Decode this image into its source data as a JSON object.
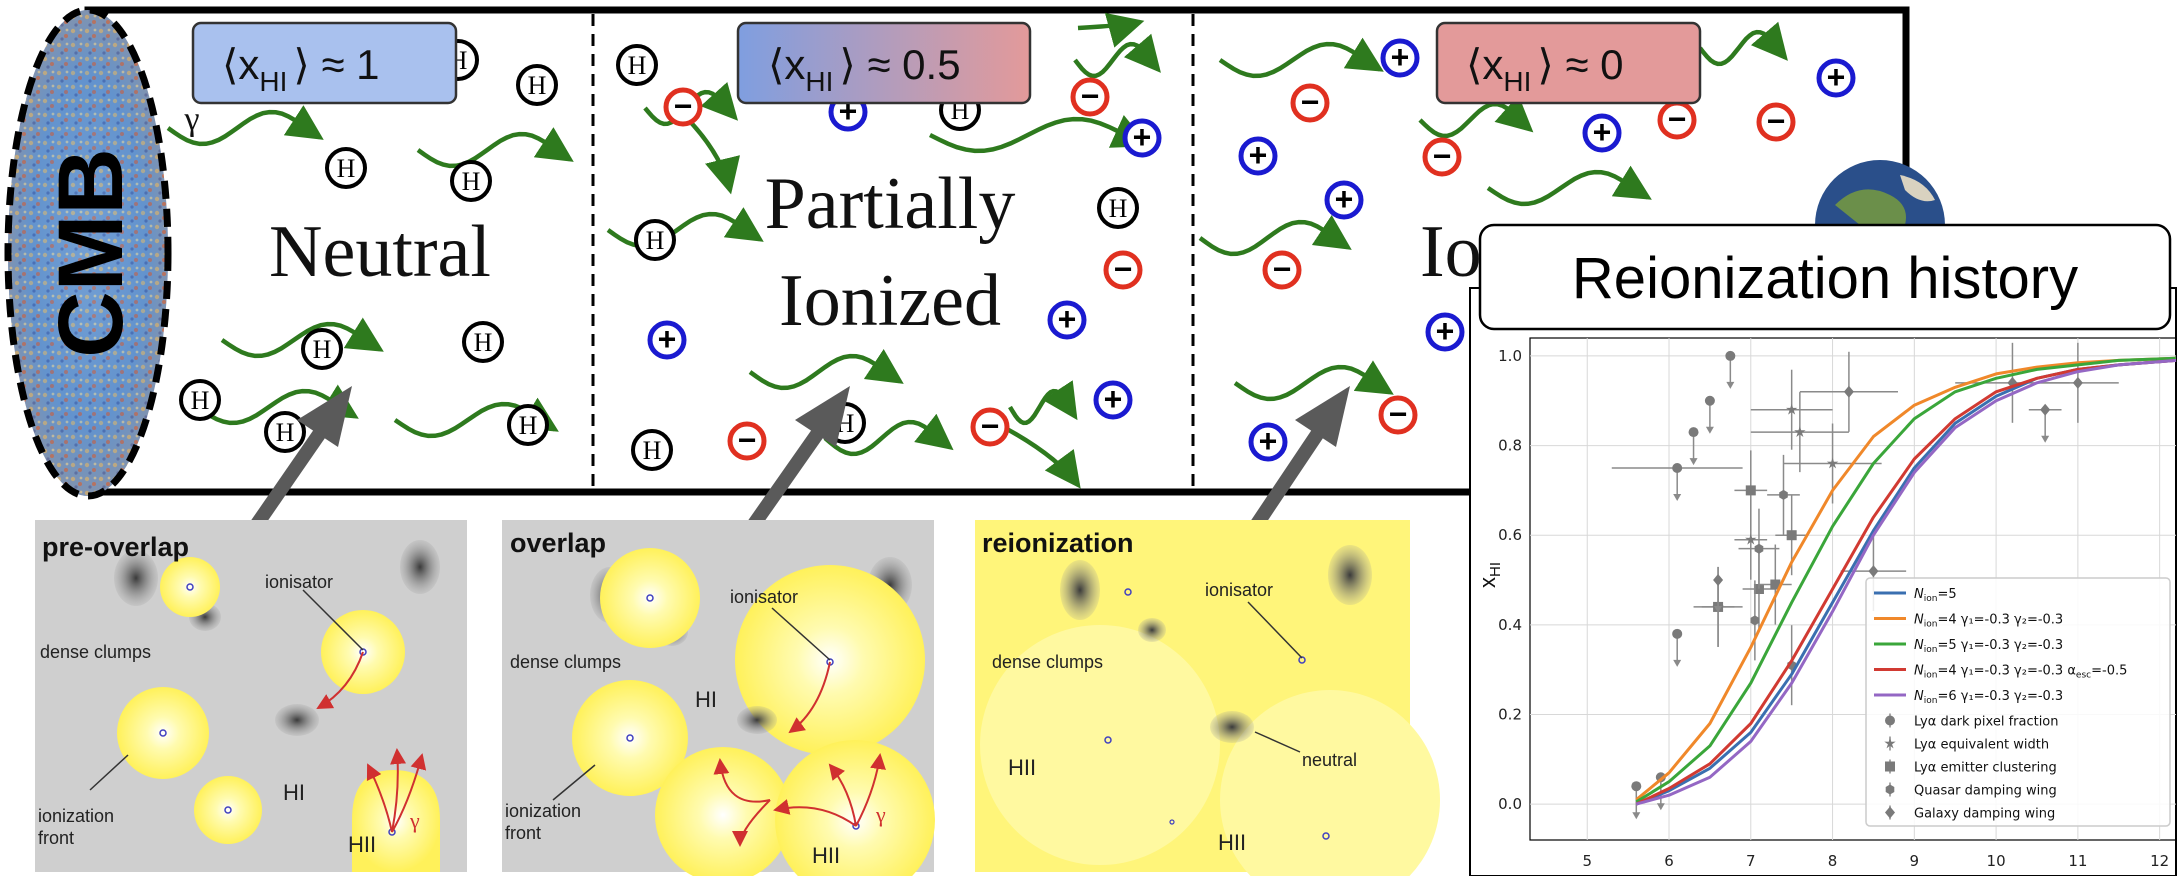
{
  "colors": {
    "neutral_atom": "#000000",
    "electron_red": "#e03020",
    "proton_blue": "#1a1ad0",
    "photon_green": "#2e7a1e",
    "badge_neutral": "#a9c1ee",
    "badge_partial_left": "#7f9ee0",
    "badge_partial_right": "#e39a9a",
    "badge_ionized": "#e39a9a",
    "bubble_yellow": "#fff66a",
    "background_gray": "#cfcfcf",
    "front_red": "#d03030",
    "arrow_gray": "#5a5a5a"
  },
  "top_panel": {
    "cmb_label": "CMB",
    "panels": [
      {
        "badge": "⟨x",
        "badge_sub": "HI",
        "badge_tail": "⟩ ≈ 1",
        "title_line1": "Neutral",
        "title_line2": "",
        "gamma": "γ"
      },
      {
        "badge": "⟨x",
        "badge_sub": "HI",
        "badge_tail": "⟩ ≈ 0.5",
        "title_line1": "Partially",
        "title_line2": "Ionized"
      },
      {
        "badge": "⟨x",
        "badge_sub": "HI",
        "badge_tail": "⟩ ≈ 0",
        "title_line1": "Io",
        "title_line2": ""
      }
    ],
    "atom_symbol": "H",
    "electron_symbol": "−",
    "proton_symbol": "+"
  },
  "bottom_panels": [
    {
      "title": "pre-overlap",
      "labels": {
        "ionisator": "ionisator",
        "dense": "dense clumps",
        "front1": "ionization",
        "front2": "front",
        "hi": "HI",
        "hii": "HII",
        "gamma": "γ"
      }
    },
    {
      "title": "overlap",
      "labels": {
        "ionisator": "ionisator",
        "dense": "dense clumps",
        "front1": "ionization",
        "front2": "front",
        "hi": "HI",
        "hii": "HII",
        "gamma": "γ"
      }
    },
    {
      "title": "reionization",
      "labels": {
        "ionisator": "ionisator",
        "dense": "dense clumps",
        "neutral": "neutral",
        "hii1": "HII",
        "hii2": "HII"
      }
    }
  ],
  "history_title": "Reionization history",
  "chart_data": {
    "type": "line",
    "title": "",
    "xlabel": "",
    "ylabel": "x",
    "ylabel_sub": "HI",
    "xlim": [
      4.3,
      12.2
    ],
    "ylim": [
      -0.08,
      1.04
    ],
    "xticks": [
      "5",
      "6",
      "7",
      "8",
      "9",
      "10",
      "11",
      "12"
    ],
    "yticks": [
      "0.0",
      "0.2",
      "0.4",
      "0.6",
      "0.8",
      "1.0"
    ],
    "grid": true,
    "legend_position": "lower-right",
    "series": [
      {
        "name": "N_ion=5",
        "legend_main": "N",
        "legend_sub": "ion",
        "legend_rest": "=5",
        "color": "#3a6fb0",
        "x": [
          5.6,
          6.0,
          6.5,
          7.0,
          7.5,
          8.0,
          8.5,
          9.0,
          9.5,
          10.0,
          10.5,
          11.0,
          11.5,
          12.2
        ],
        "y": [
          0.0,
          0.03,
          0.08,
          0.16,
          0.29,
          0.45,
          0.61,
          0.75,
          0.85,
          0.91,
          0.95,
          0.97,
          0.98,
          0.99
        ]
      },
      {
        "name": "N_ion=4 γ1=-0.3 γ2=-0.3",
        "legend_main": "N",
        "legend_sub": "ion",
        "legend_rest": "=4 γ₁=-0.3 γ₂=-0.3",
        "color": "#f0882a",
        "x": [
          5.6,
          6.0,
          6.5,
          7.0,
          7.5,
          8.0,
          8.5,
          9.0,
          9.5,
          10.0,
          10.5,
          11.0,
          11.5,
          12.2
        ],
        "y": [
          0.01,
          0.07,
          0.18,
          0.35,
          0.54,
          0.7,
          0.82,
          0.89,
          0.93,
          0.96,
          0.975,
          0.985,
          0.99,
          0.995
        ]
      },
      {
        "name": "N_ion=5 γ1=-0.3 γ2=-0.3",
        "legend_main": "N",
        "legend_sub": "ion",
        "legend_rest": "=5 γ₁=-0.3 γ₂=-0.3",
        "color": "#3aa63a",
        "x": [
          5.6,
          6.0,
          6.5,
          7.0,
          7.5,
          8.0,
          8.5,
          9.0,
          9.5,
          10.0,
          10.5,
          11.0,
          11.5,
          12.2
        ],
        "y": [
          0.005,
          0.05,
          0.13,
          0.27,
          0.45,
          0.62,
          0.76,
          0.86,
          0.92,
          0.95,
          0.97,
          0.98,
          0.99,
          0.995
        ]
      },
      {
        "name": "N_ion=4 γ1=-0.3 γ2=-0.3 α_esc=-0.5",
        "legend_main": "N",
        "legend_sub": "ion",
        "legend_rest": "=4 γ₁=-0.3 γ₂=-0.3 α",
        "legend_sub2": "esc",
        "legend_rest2": "=-0.5",
        "color": "#d13a32",
        "x": [
          5.6,
          6.0,
          6.5,
          7.0,
          7.5,
          8.0,
          8.5,
          9.0,
          9.5,
          10.0,
          10.5,
          11.0,
          11.5,
          12.2
        ],
        "y": [
          0.0,
          0.035,
          0.09,
          0.18,
          0.32,
          0.48,
          0.64,
          0.77,
          0.86,
          0.92,
          0.95,
          0.97,
          0.98,
          0.99
        ]
      },
      {
        "name": "N_ion=6 γ1=-0.3 γ2=-0.3",
        "legend_main": "N",
        "legend_sub": "ion",
        "legend_rest": "=6 γ₁=-0.3 γ₂=-0.3",
        "color": "#9467c4",
        "x": [
          5.6,
          6.0,
          6.5,
          7.0,
          7.5,
          8.0,
          8.5,
          9.0,
          9.5,
          10.0,
          10.5,
          11.0,
          11.5,
          12.2
        ],
        "y": [
          0.0,
          0.02,
          0.06,
          0.14,
          0.27,
          0.43,
          0.6,
          0.74,
          0.84,
          0.9,
          0.94,
          0.965,
          0.98,
          0.99
        ]
      }
    ],
    "observations_legend": [
      {
        "marker": "circle",
        "label": "Lyα dark pixel fraction"
      },
      {
        "marker": "star",
        "label": "Lyα equivalent width"
      },
      {
        "marker": "square",
        "label": "Lyα emitter clustering"
      },
      {
        "marker": "hexagon",
        "label": "Quasar damping wing"
      },
      {
        "marker": "diamond",
        "label": "Galaxy damping wing"
      }
    ],
    "observations": [
      {
        "marker": "circle",
        "x": 5.6,
        "y": 0.04,
        "xerr": 0,
        "upper": true
      },
      {
        "marker": "circle",
        "x": 5.9,
        "y": 0.06,
        "xerr": 0,
        "upper": true
      },
      {
        "marker": "circle",
        "x": 6.1,
        "y": 0.38,
        "xerr": 0,
        "upper": true
      },
      {
        "marker": "circle",
        "x": 6.1,
        "y": 0.75,
        "xerr": 0.8,
        "upper": true
      },
      {
        "marker": "circle",
        "x": 6.3,
        "y": 0.83,
        "xerr": 0,
        "upper": true
      },
      {
        "marker": "circle",
        "x": 6.5,
        "y": 0.9,
        "xerr": 0,
        "upper": true
      },
      {
        "marker": "circle",
        "x": 6.75,
        "y": 1.0,
        "xerr": 0,
        "upper": true
      },
      {
        "marker": "star",
        "x": 6.6,
        "y": 0.44,
        "xerr": 0.2,
        "upper": false
      },
      {
        "marker": "star",
        "x": 7.0,
        "y": 0.59,
        "xerr": 0.2,
        "upper": false
      },
      {
        "marker": "star",
        "x": 7.5,
        "y": 0.88,
        "xerr": 0.5,
        "upper": false
      },
      {
        "marker": "star",
        "x": 7.6,
        "y": 0.83,
        "xerr": 0.6,
        "upper": false
      },
      {
        "marker": "star",
        "x": 8.0,
        "y": 0.76,
        "xerr": 0.6,
        "upper": false
      },
      {
        "marker": "square",
        "x": 6.6,
        "y": 0.44,
        "xerr": 0.3,
        "upper": false
      },
      {
        "marker": "square",
        "x": 7.0,
        "y": 0.7,
        "xerr": 0.2,
        "upper": false
      },
      {
        "marker": "square",
        "x": 7.1,
        "y": 0.48,
        "xerr": 0.2,
        "upper": false
      },
      {
        "marker": "square",
        "x": 7.3,
        "y": 0.49,
        "xerr": 0.2,
        "upper": false
      },
      {
        "marker": "square",
        "x": 7.5,
        "y": 0.6,
        "xerr": 0.2,
        "upper": false
      },
      {
        "marker": "hexagon",
        "x": 7.05,
        "y": 0.41,
        "xerr": 0,
        "upper": false
      },
      {
        "marker": "hexagon",
        "x": 7.5,
        "y": 0.31,
        "xerr": 0,
        "upper": false
      },
      {
        "marker": "hexagon",
        "x": 7.1,
        "y": 0.57,
        "xerr": 0.25,
        "upper": false
      },
      {
        "marker": "hexagon",
        "x": 7.4,
        "y": 0.69,
        "xerr": 0.2,
        "upper": false
      },
      {
        "marker": "diamond",
        "x": 8.2,
        "y": 0.92,
        "xerr": 0.6,
        "upper": false
      },
      {
        "marker": "diamond",
        "x": 10.2,
        "y": 0.94,
        "xerr": 0.7,
        "upper": false
      },
      {
        "marker": "diamond",
        "x": 10.6,
        "y": 0.88,
        "xerr": 0.2,
        "upper": true
      },
      {
        "marker": "diamond",
        "x": 11.0,
        "y": 0.94,
        "xerr": 0.5,
        "upper": false
      },
      {
        "marker": "diamond",
        "x": 6.6,
        "y": 0.5,
        "xerr": 0,
        "upper": true
      },
      {
        "marker": "diamond",
        "x": 8.5,
        "y": 0.52,
        "xerr": 0.4,
        "upper": false
      }
    ]
  }
}
